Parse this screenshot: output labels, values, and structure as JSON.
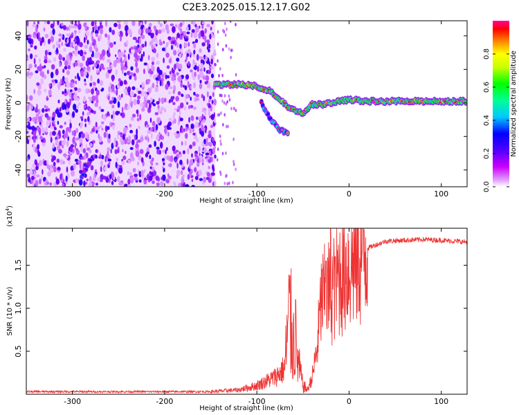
{
  "title": "C2E3.2025.015.12.17.G02",
  "chart_data": [
    {
      "type": "heatmap",
      "xlabel": "Height of straight line (km)",
      "ylabel": "Frequency (Hz)",
      "xlim": [
        -350,
        128
      ],
      "ylim": [
        -50,
        49
      ],
      "xticks": [
        -300,
        -200,
        -100,
        0,
        100
      ],
      "yticks": [
        -40,
        -20,
        0,
        20,
        40
      ],
      "colorbar": {
        "label": "Normalized spectral amplitude",
        "ticks": [
          0.0,
          0.2,
          0.4,
          0.6,
          0.8
        ],
        "range": [
          0,
          1
        ],
        "colors": [
          "#ffffff",
          "#cc00ff",
          "#6600ff",
          "#0000ff",
          "#00c8ff",
          "#00ff96",
          "#00ff00",
          "#c8ff00",
          "#ffff00",
          "#ff8000",
          "#ff0000",
          "#ff0099"
        ]
      },
      "regions": [
        {
          "description": "noise",
          "x_range": [
            -350,
            -145
          ],
          "f_range": [
            -50,
            49
          ],
          "amplitude": 0.15
        },
        {
          "description": "signal track",
          "points": [
            [
              -145,
              11
            ],
            [
              -120,
              11
            ],
            [
              -100,
              10
            ],
            [
              -85,
              7
            ],
            [
              -75,
              2
            ],
            [
              -65,
              -3
            ],
            [
              -50,
              -6
            ],
            [
              -40,
              -1
            ],
            [
              -30,
              -1
            ],
            [
              -20,
              0
            ],
            [
              -10,
              1
            ],
            [
              0,
              2
            ],
            [
              20,
              1
            ],
            [
              60,
              1
            ],
            [
              100,
              1
            ],
            [
              128,
              1
            ]
          ],
          "amplitude": 0.75
        },
        {
          "description": "lower branch",
          "points": [
            [
              -95,
              0
            ],
            [
              -85,
              -10
            ],
            [
              -75,
              -16
            ],
            [
              -65,
              -19
            ]
          ],
          "amplitude": 0.45
        },
        {
          "description": "low feature",
          "points": [
            [
              -290,
              -44
            ],
            [
              -282,
              -36
            ],
            [
              -280,
              -33
            ]
          ],
          "amplitude": 0.3
        }
      ]
    },
    {
      "type": "line",
      "xlabel": "Height of straight line (km)",
      "ylabel": "SNR (10 * v/v)",
      "yscale_label": "(x10^4)",
      "xlim": [
        -350,
        128
      ],
      "ylim": [
        0,
        1.93
      ],
      "xticks": [
        -300,
        -200,
        -100,
        0,
        100
      ],
      "yticks": [
        0.5,
        1.0,
        1.5
      ],
      "color": "#ee3333",
      "envelope": [
        {
          "x": -350,
          "y": 0.03
        },
        {
          "x": -200,
          "y": 0.03
        },
        {
          "x": -150,
          "y": 0.03
        },
        {
          "x": -120,
          "y": 0.05
        },
        {
          "x": -100,
          "y": 0.1
        },
        {
          "x": -80,
          "y": 0.2
        },
        {
          "x": -70,
          "y": 0.3
        },
        {
          "x": -65,
          "y": 0.9
        },
        {
          "x": -60,
          "y": 0.6
        },
        {
          "x": -55,
          "y": 0.35
        },
        {
          "x": -50,
          "y": 0.1
        },
        {
          "x": -45,
          "y": 0.05
        },
        {
          "x": -40,
          "y": 0.2
        },
        {
          "x": -35,
          "y": 0.5
        },
        {
          "x": -30,
          "y": 1.1
        },
        {
          "x": -20,
          "y": 1.2
        },
        {
          "x": -10,
          "y": 1.4
        },
        {
          "x": 0,
          "y": 1.5
        },
        {
          "x": 10,
          "y": 1.6
        },
        {
          "x": 20,
          "y": 1.7
        },
        {
          "x": 40,
          "y": 1.78
        },
        {
          "x": 60,
          "y": 1.79
        },
        {
          "x": 80,
          "y": 1.8
        },
        {
          "x": 100,
          "y": 1.79
        },
        {
          "x": 128,
          "y": 1.77
        }
      ],
      "peaks": [
        {
          "x": -64,
          "y": 1.38
        },
        {
          "x": -58,
          "y": 1.1
        },
        {
          "x": -20,
          "y": 1.93
        },
        {
          "x": -15,
          "y": 1.6
        },
        {
          "x": -25,
          "y": 1.55
        }
      ]
    }
  ]
}
